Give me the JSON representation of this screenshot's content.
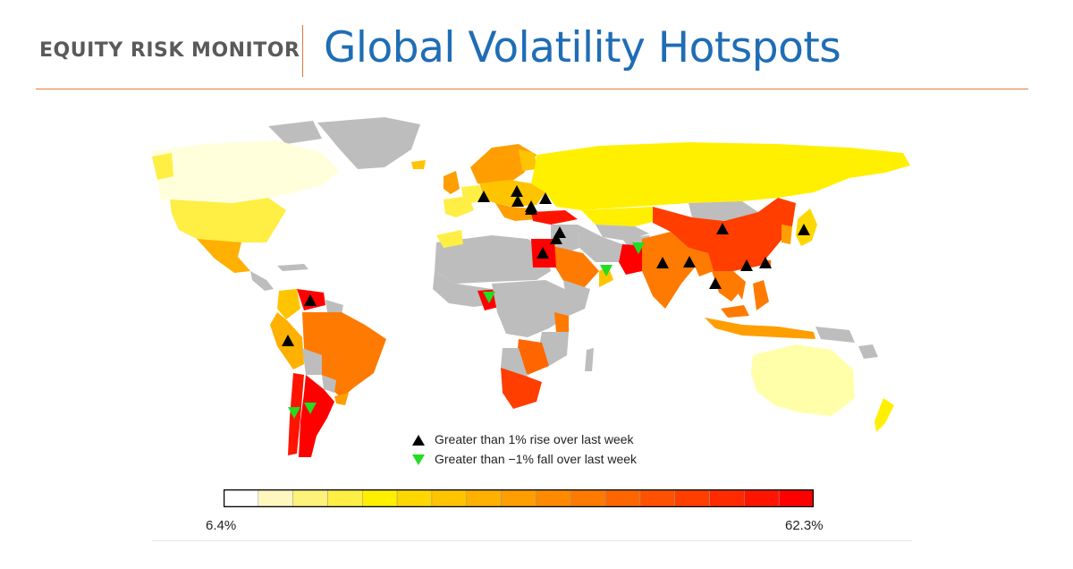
{
  "header": {
    "brand": "EQUITY RISK MONITOR",
    "title": "Global Volatility Hotspots"
  },
  "colors": {
    "accent_line": "#e07b39",
    "title_blue": "#1f6db5",
    "no_data": "#bdbdbd",
    "rise_marker": "#000000",
    "fall_marker": "#22dd22"
  },
  "legend": {
    "rise_label": "Greater than 1% rise over last week",
    "fall_label": "Greater than −1% fall over last week"
  },
  "colorbar": {
    "min_label": "6.4%",
    "max_label": "62.3%",
    "min_value": 6.4,
    "max_value": 62.3,
    "swatches": [
      "#ffffff",
      "#fff7c0",
      "#fff27a",
      "#ffee44",
      "#fff000",
      "#ffd700",
      "#ffc400",
      "#ffb000",
      "#ff9e00",
      "#ff8a00",
      "#ff7a00",
      "#ff6600",
      "#ff5200",
      "#ff3e00",
      "#ff2a00",
      "#ff1400",
      "#ff0000"
    ]
  },
  "markers": [
    {
      "type": "rise",
      "location": "France"
    },
    {
      "type": "rise",
      "location": "Germany"
    },
    {
      "type": "rise",
      "location": "Switzerland"
    },
    {
      "type": "rise",
      "location": "Austria"
    },
    {
      "type": "rise",
      "location": "Hungary"
    },
    {
      "type": "rise",
      "location": "Italy"
    },
    {
      "type": "rise",
      "location": "Israel"
    },
    {
      "type": "rise",
      "location": "Jordan"
    },
    {
      "type": "rise",
      "location": "Egypt"
    },
    {
      "type": "fall",
      "location": "Pakistan"
    },
    {
      "type": "fall",
      "location": "Oman"
    },
    {
      "type": "rise",
      "location": "India"
    },
    {
      "type": "rise",
      "location": "Bangladesh"
    },
    {
      "type": "rise",
      "location": "China"
    },
    {
      "type": "rise",
      "location": "Japan"
    },
    {
      "type": "rise",
      "location": "Vietnam"
    },
    {
      "type": "rise",
      "location": "Taiwan"
    },
    {
      "type": "rise",
      "location": "Thailand"
    },
    {
      "type": "rise",
      "location": "Venezuela"
    },
    {
      "type": "rise",
      "location": "Peru"
    },
    {
      "type": "fall",
      "location": "Nigeria"
    },
    {
      "type": "fall",
      "location": "Chile"
    },
    {
      "type": "fall",
      "location": "Argentina"
    }
  ]
}
